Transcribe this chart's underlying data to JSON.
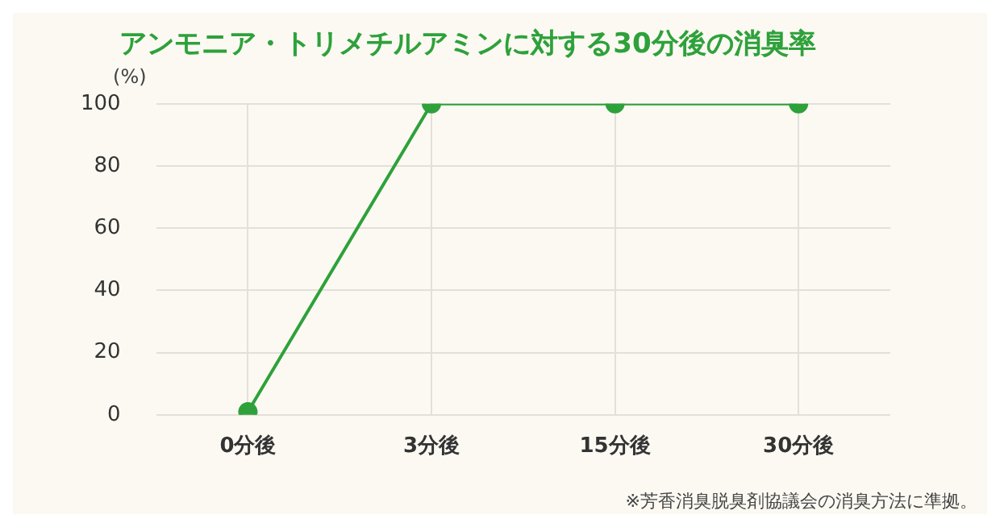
{
  "chart_data": {
    "type": "line",
    "title": "アンモニア・トリメチルアミンに対する30分後の消臭率",
    "ylabel": "(%)",
    "categories": [
      "0分後",
      "3分後",
      "15分後",
      "30分後"
    ],
    "series": [
      {
        "color": "#2ea13b",
        "values": [
          1,
          100,
          100,
          100
        ]
      }
    ],
    "ylim": [
      0,
      100
    ],
    "yticks": [
      0,
      20,
      40,
      60,
      80,
      100
    ],
    "grid": true,
    "legend": false,
    "marker": "circle",
    "line_style": "solid",
    "annotations": [
      "※芳香消臭脱臭剤協議会の消臭方法に準拠。"
    ]
  }
}
